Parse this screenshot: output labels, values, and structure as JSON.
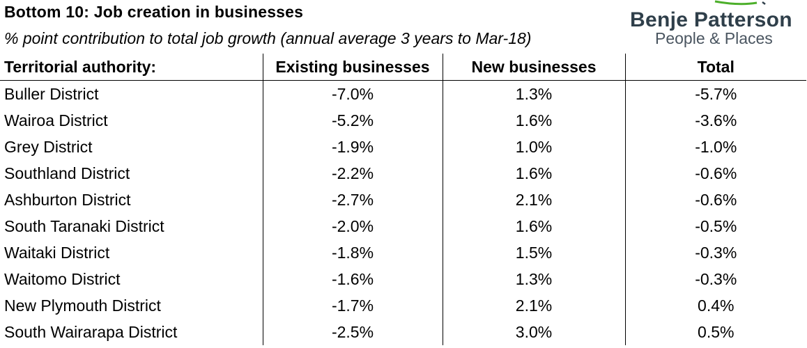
{
  "title": "Bottom 10: Job creation in businesses",
  "subtitle": "% point contribution to total job growth (annual average 3 years to Mar-18)",
  "logo": {
    "name": "Benje Patterson",
    "tagline": "People & Places",
    "accent_color": "#4caf2a",
    "text_color": "#2f3f4a"
  },
  "table": {
    "headers": [
      "Territorial authority:",
      "Existing businesses",
      "New businesses",
      "Total"
    ],
    "rows": [
      {
        "authority": "Buller District",
        "existing": "-7.0%",
        "new": "1.3%",
        "total": "-5.7%"
      },
      {
        "authority": "Wairoa District",
        "existing": "-5.2%",
        "new": "1.6%",
        "total": "-3.6%"
      },
      {
        "authority": "Grey District",
        "existing": "-1.9%",
        "new": "1.0%",
        "total": "-1.0%"
      },
      {
        "authority": "Southland District",
        "existing": "-2.2%",
        "new": "1.6%",
        "total": "-0.6%"
      },
      {
        "authority": "Ashburton District",
        "existing": "-2.7%",
        "new": "2.1%",
        "total": "-0.6%"
      },
      {
        "authority": "South Taranaki District",
        "existing": "-2.0%",
        "new": "1.6%",
        "total": "-0.5%"
      },
      {
        "authority": "Waitaki District",
        "existing": "-1.8%",
        "new": "1.5%",
        "total": "-0.3%"
      },
      {
        "authority": "Waitomo District",
        "existing": "-1.6%",
        "new": "1.3%",
        "total": "-0.3%"
      },
      {
        "authority": "New Plymouth District",
        "existing": "-1.7%",
        "new": "2.1%",
        "total": "0.4%"
      },
      {
        "authority": "South Wairarapa District",
        "existing": "-2.5%",
        "new": "3.0%",
        "total": "0.5%"
      }
    ]
  }
}
